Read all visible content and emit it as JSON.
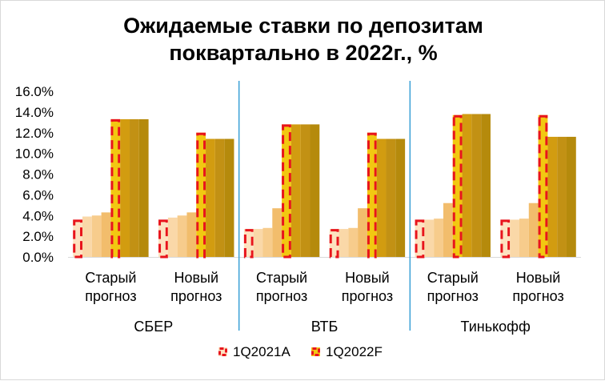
{
  "chart_data": {
    "type": "bar",
    "title_lines": [
      "Ожидаемые ставки по депозитам",
      "поквартально в 2022г., %"
    ],
    "y_ticks": [
      "0.0%",
      "2.0%",
      "4.0%",
      "6.0%",
      "8.0%",
      "10.0%",
      "12.0%",
      "14.0%",
      "16.0%"
    ],
    "ylim": [
      0,
      16
    ],
    "groups": [
      {
        "bank": "СБЕР",
        "forecasts": [
          {
            "label_lines": [
              "Старый",
              "прогноз"
            ],
            "values": [
              3.6,
              3.9,
              4.0,
              4.3,
              13.3,
              13.3,
              13.3,
              13.3
            ]
          },
          {
            "label_lines": [
              "Новый",
              "прогноз"
            ],
            "values": [
              3.6,
              3.8,
              4.0,
              4.3,
              12.0,
              11.4,
              11.4,
              11.4
            ]
          }
        ]
      },
      {
        "bank": "ВТБ",
        "forecasts": [
          {
            "label_lines": [
              "Старый",
              "прогноз"
            ],
            "values": [
              2.7,
              2.7,
              2.8,
              4.7,
              12.8,
              12.8,
              12.8,
              12.8
            ]
          },
          {
            "label_lines": [
              "Новый",
              "прогноз"
            ],
            "values": [
              2.7,
              2.7,
              2.8,
              4.7,
              12.0,
              11.4,
              11.4,
              11.4
            ]
          }
        ]
      },
      {
        "bank": "Тинькофф",
        "forecasts": [
          {
            "label_lines": [
              "Старый",
              "прогноз"
            ],
            "values": [
              3.6,
              3.6,
              3.7,
              5.2,
              13.7,
              13.8,
              13.8,
              13.8
            ]
          },
          {
            "label_lines": [
              "Новый",
              "прогноз"
            ],
            "values": [
              3.6,
              3.6,
              3.7,
              5.2,
              13.7,
              11.6,
              11.6,
              11.6
            ]
          }
        ]
      }
    ],
    "series_colors": [
      "#fce4c0",
      "#fad8a8",
      "#f7cc8c",
      "#f2bd6c",
      "#e5a90f",
      "#d29c10",
      "#c29114",
      "#b58a0c"
    ],
    "highlight": [
      {
        "series_index": 0,
        "label": "1Q2021A",
        "fill": "#fde2c0",
        "dash_color": "#e8141c"
      },
      {
        "series_index": 4,
        "label": "1Q2022F",
        "fill": "#f2c811",
        "dash_color": "#e8141c"
      }
    ],
    "separator_color": "#3aa0d6",
    "grid": false,
    "legend_position": "bottom"
  }
}
